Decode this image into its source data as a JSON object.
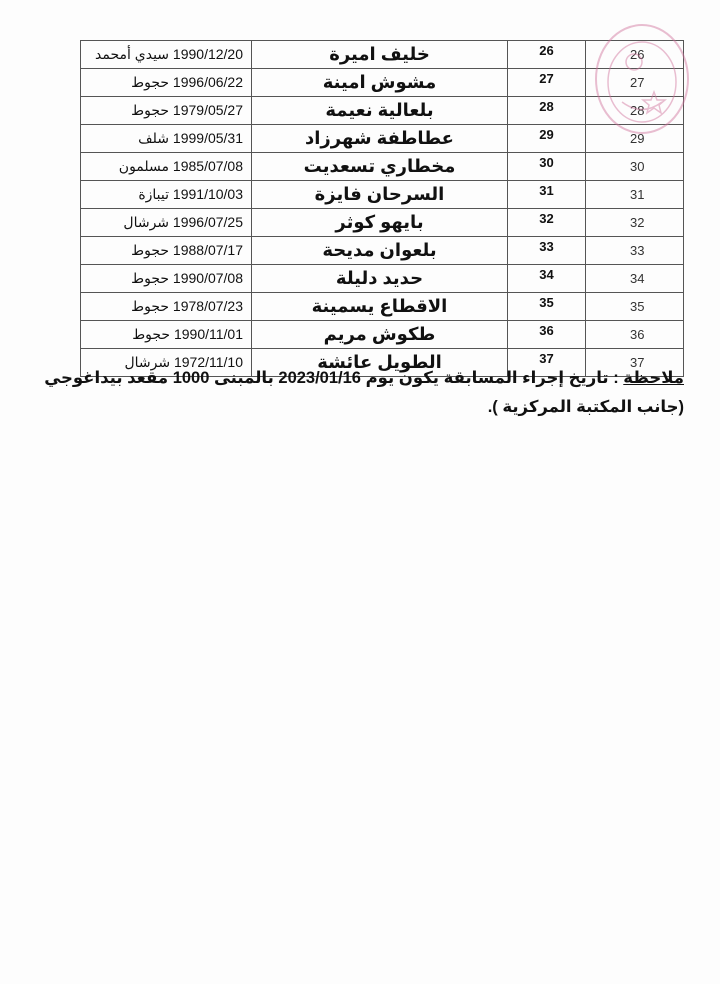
{
  "table": {
    "rows": [
      {
        "seq": "26",
        "num": "26",
        "name": "خليف اميرة",
        "date": "1990/12/20",
        "place": "سيدي أمحمد"
      },
      {
        "seq": "27",
        "num": "27",
        "name": "مشوش امينة",
        "date": "1996/06/22",
        "place": "حجوط"
      },
      {
        "seq": "28",
        "num": "28",
        "name": "بلعالية نعيمة",
        "date": "1979/05/27",
        "place": "حجوط"
      },
      {
        "seq": "29",
        "num": "29",
        "name": "عطاطفة شهرزاد",
        "date": "1999/05/31",
        "place": "شلف"
      },
      {
        "seq": "30",
        "num": "30",
        "name": "مخطاري تسعديت",
        "date": "1985/07/08",
        "place": "مسلمون"
      },
      {
        "seq": "31",
        "num": "31",
        "name": "السرحان فايزة",
        "date": "1991/10/03",
        "place": "تيبازة"
      },
      {
        "seq": "32",
        "num": "32",
        "name": "بايهو كوثر",
        "date": "1996/07/25",
        "place": "شرشال"
      },
      {
        "seq": "33",
        "num": "33",
        "name": "بلعوان مديحة",
        "date": "1988/07/17",
        "place": "حجوط"
      },
      {
        "seq": "34",
        "num": "34",
        "name": "حديد دليلة",
        "date": "1990/07/08",
        "place": "حجوط"
      },
      {
        "seq": "35",
        "num": "35",
        "name": "الاقطاع يسمينة",
        "date": "1978/07/23",
        "place": "حجوط"
      },
      {
        "seq": "36",
        "num": "36",
        "name": "طكوش مريم",
        "date": "1990/11/01",
        "place": "حجوط"
      },
      {
        "seq": "37",
        "num": "37",
        "name": "الطويل عائشة",
        "date": "1972/11/10",
        "place": "شرشال"
      }
    ]
  },
  "note": {
    "label": "ملاحظة",
    "text": " : تاريخ إجراء المسابقة يكون يوم 2023/01/16 بالمبنى 1000 مقعد بيداغوجي (جانب المكتبة المركزية )."
  },
  "stamp": {
    "color": "#d0709a"
  }
}
